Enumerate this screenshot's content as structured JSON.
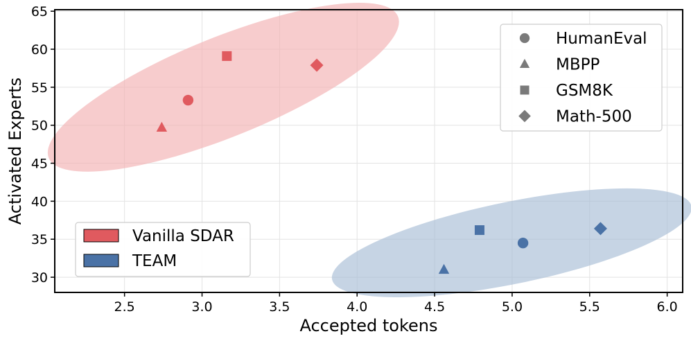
{
  "chart_data": {
    "type": "scatter",
    "xlabel": "Accepted tokens",
    "ylabel": "Activated Experts",
    "xlim": [
      2.05,
      6.1
    ],
    "ylim": [
      28,
      65.2
    ],
    "xticks": [
      2.5,
      3.0,
      3.5,
      4.0,
      4.5,
      5.0,
      5.5,
      6.0
    ],
    "xtick_labels": [
      "2.5",
      "3.0",
      "3.5",
      "4.0",
      "4.5",
      "5.0",
      "5.5",
      "6.0"
    ],
    "yticks": [
      30,
      35,
      40,
      45,
      50,
      55,
      60,
      65
    ],
    "ytick_labels": [
      "30",
      "35",
      "40",
      "45",
      "50",
      "55",
      "60",
      "65"
    ],
    "grid": true,
    "series": [
      {
        "name": "Vanilla SDAR",
        "color": "#e05a5f",
        "region_color": "#f2b0b2",
        "points": [
          {
            "benchmark": "HumanEval",
            "x": 2.91,
            "y": 53.3
          },
          {
            "benchmark": "MBPP",
            "x": 2.74,
            "y": 49.7
          },
          {
            "benchmark": "GSM8K",
            "x": 3.16,
            "y": 59.1
          },
          {
            "benchmark": "Math-500",
            "x": 3.74,
            "y": 57.9
          }
        ]
      },
      {
        "name": "TEAM",
        "color": "#4a72a6",
        "region_color": "#a8bdd6",
        "points": [
          {
            "benchmark": "HumanEval",
            "x": 5.07,
            "y": 34.5
          },
          {
            "benchmark": "MBPP",
            "x": 4.56,
            "y": 31.0
          },
          {
            "benchmark": "GSM8K",
            "x": 4.79,
            "y": 36.2
          },
          {
            "benchmark": "Math-500",
            "x": 5.57,
            "y": 36.4
          }
        ]
      }
    ],
    "marker_legend": {
      "placement": "top-right",
      "items": [
        {
          "label": "HumanEval",
          "marker": "circle"
        },
        {
          "label": "MBPP",
          "marker": "triangle"
        },
        {
          "label": "GSM8K",
          "marker": "square"
        },
        {
          "label": "Math-500",
          "marker": "diamond"
        }
      ]
    },
    "method_legend": {
      "placement": "bottom-left",
      "items": [
        {
          "label": "Vanilla SDAR",
          "color": "#e05a5f"
        },
        {
          "label": "TEAM",
          "color": "#4a72a6"
        }
      ]
    }
  }
}
